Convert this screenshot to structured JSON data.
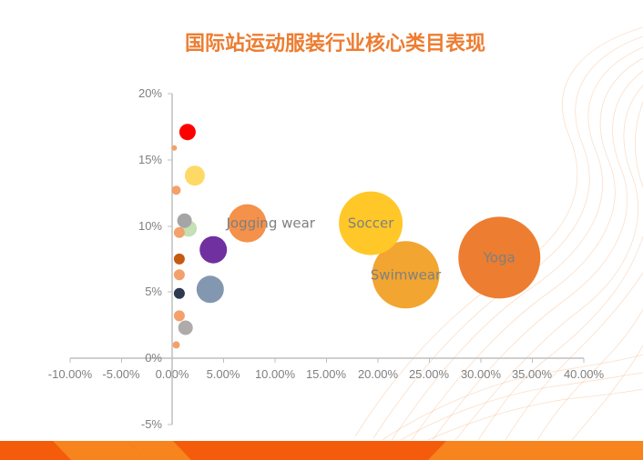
{
  "title": "国际站运动服装行业核心类目表现",
  "colors": {
    "title": "#ED7D31",
    "axis": "#BFBFBF",
    "tick_text": "#7F7F7F",
    "footer_dark": "#F45B0A",
    "footer_light": "#F7841D"
  },
  "chart_data": {
    "type": "bubble",
    "title": "国际站运动服装行业核心类目表现",
    "xlabel": "",
    "ylabel": "",
    "xlim": [
      -0.1,
      0.4
    ],
    "ylim": [
      -0.05,
      0.2
    ],
    "x_ticks": [
      "-10.00%",
      "-5.00%",
      "0.00%",
      "5.00%",
      "10.00%",
      "15.00%",
      "20.00%",
      "25.00%",
      "30.00%",
      "35.00%",
      "40.00%"
    ],
    "y_ticks": [
      "-5%",
      "0%",
      "5%",
      "10%",
      "15%",
      "20%"
    ],
    "grid": false,
    "legend": "none",
    "points": [
      {
        "label": "",
        "x": 0.015,
        "y": 0.171,
        "size": 9,
        "color": "#FF0000"
      },
      {
        "label": "",
        "x": 0.002,
        "y": 0.159,
        "size": 3,
        "color": "#F4A06A"
      },
      {
        "label": "",
        "x": 0.022,
        "y": 0.138,
        "size": 11,
        "color": "#FFD966"
      },
      {
        "label": "",
        "x": 0.004,
        "y": 0.127,
        "size": 5,
        "color": "#F4A06A"
      },
      {
        "label": "",
        "x": 0.012,
        "y": 0.104,
        "size": 8,
        "color": "#A5A5A5"
      },
      {
        "label": "",
        "x": 0.016,
        "y": 0.098,
        "size": 9,
        "color": "#C5E0B4"
      },
      {
        "label": "",
        "x": 0.007,
        "y": 0.095,
        "size": 6,
        "color": "#F4A06A"
      },
      {
        "label": "",
        "x": 0.04,
        "y": 0.082,
        "size": 15,
        "color": "#7030A0"
      },
      {
        "label": "",
        "x": 0.007,
        "y": 0.075,
        "size": 6,
        "color": "#C55A11"
      },
      {
        "label": "",
        "x": 0.007,
        "y": 0.063,
        "size": 6,
        "color": "#F4A06A"
      },
      {
        "label": "",
        "x": 0.007,
        "y": 0.049,
        "size": 6,
        "color": "#2E3A50"
      },
      {
        "label": "",
        "x": 0.037,
        "y": 0.052,
        "size": 15,
        "color": "#8497B0"
      },
      {
        "label": "",
        "x": 0.007,
        "y": 0.032,
        "size": 6,
        "color": "#F4A06A"
      },
      {
        "label": "",
        "x": 0.013,
        "y": 0.023,
        "size": 8,
        "color": "#AFABAB"
      },
      {
        "label": "",
        "x": 0.004,
        "y": 0.01,
        "size": 4,
        "color": "#F4A06A"
      },
      {
        "label": "Jogging wear",
        "x": 0.073,
        "y": 0.102,
        "size": 21,
        "color": "#F4914A"
      },
      {
        "label": "Soccer",
        "x": 0.193,
        "y": 0.102,
        "size": 35,
        "color": "#FFC828"
      },
      {
        "label": "Swimwear",
        "x": 0.227,
        "y": 0.063,
        "size": 37,
        "color": "#F2A530"
      },
      {
        "label": "Yoga",
        "x": 0.318,
        "y": 0.076,
        "size": 45,
        "color": "#ED7D31"
      }
    ]
  }
}
